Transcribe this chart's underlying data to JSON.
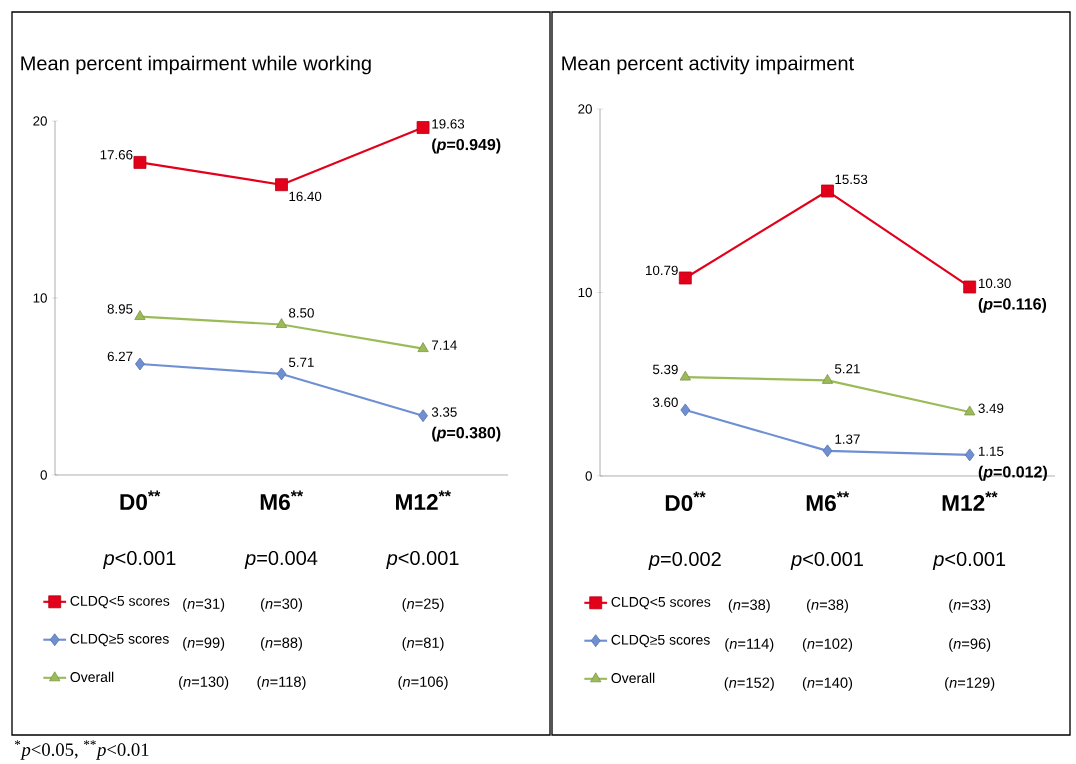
{
  "chart_data": [
    {
      "type": "line",
      "title": "Mean percent impairment while working",
      "categories": [
        "D0$^{**}$",
        "M6$^{**}$",
        "M12$^{**}$"
      ],
      "ylim": [
        0,
        20
      ],
      "yticks": [
        0,
        10,
        20
      ],
      "legend": "bottom",
      "line_style": "solid",
      "series": [
        {
          "name": "CLDQ<5 scores",
          "color": "#e3001b",
          "marker": "square",
          "values": [
            17.66,
            16.4,
            19.63
          ],
          "value_labels": [
            "17.66",
            "16.40",
            "19.63"
          ]
        },
        {
          "name": "CLDQ≥5 scores",
          "color": "#6f8fd3",
          "marker": "diamond",
          "values": [
            6.27,
            5.71,
            3.35
          ],
          "value_labels": [
            "6.27",
            "5.71",
            "3.35"
          ]
        },
        {
          "name": "Overall",
          "color": "#9bbb59",
          "marker": "triangle",
          "values": [
            8.95,
            8.5,
            7.14
          ],
          "value_labels": [
            "8.95",
            "8.50",
            "7.14"
          ]
        }
      ],
      "annotations": [
        {
          "text": "(*p*=0.949)",
          "x": "M12$^{**}$",
          "y": 19.63
        },
        {
          "text": "(*p*=0.380)",
          "x": "M12$^{**}$",
          "y": 3.35
        },
        "*p*<0.001",
        "*p*=0.004",
        "*p*<0.001",
        "(*n*=31)",
        "(*n*=30)",
        "(*n*=25)",
        "(*n*=99)",
        "(*n*=88)",
        "(*n*=81)",
        "(*n*=130)",
        "(*n*=118)",
        "(*n*=106)",
        "$^{*}$*p*<0.05, $^{**}$*p*<0.01"
      ]
    },
    {
      "type": "line",
      "title": "Mean percent activity impairment",
      "categories": [
        "D0$^{**}$",
        "M6$^{**}$",
        "M12$^{**}$"
      ],
      "ylim": [
        0,
        20
      ],
      "yticks": [
        0,
        10,
        20
      ],
      "legend": "bottom",
      "line_style": "solid",
      "series": [
        {
          "name": "CLDQ<5 scores",
          "color": "#e3001b",
          "marker": "square",
          "values": [
            10.79,
            15.53,
            10.3
          ],
          "value_labels": [
            "10.79",
            "15.53",
            "10.30"
          ]
        },
        {
          "name": "CLDQ≥5 scores",
          "color": "#6f8fd3",
          "marker": "diamond",
          "values": [
            3.6,
            1.37,
            1.15
          ],
          "value_labels": [
            "3.60",
            "1.37",
            "1.15"
          ]
        },
        {
          "name": "Overall",
          "color": "#9bbb59",
          "marker": "triangle",
          "values": [
            5.39,
            5.21,
            3.49
          ],
          "value_labels": [
            "5.39",
            "5.21",
            "3.49"
          ]
        }
      ],
      "annotations": [
        {
          "text": "(*p*=0.116)",
          "x": "M12$^{**}$",
          "y": 10.3
        },
        {
          "text": "(*p*=0.012)",
          "x": "M12$^{**}$",
          "y": 1.15
        },
        "*p*=0.002",
        "*p*<0.001",
        "*p*<0.001",
        "(*n*=38)",
        "(*n*=38)",
        "(*n*=33)",
        "(*n*=114)",
        "(*n*=102)",
        "(*n*=96)",
        "(*n*=152)",
        "(*n*=140)",
        "(*n*=129)"
      ]
    }
  ]
}
